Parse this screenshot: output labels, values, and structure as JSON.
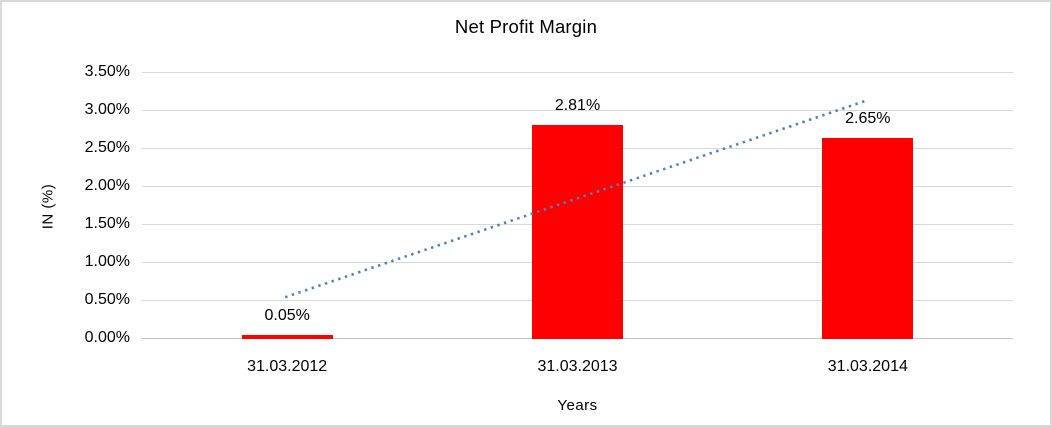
{
  "window": {
    "background_color": "#FFFFFF",
    "border_color": "#D8D8D8"
  },
  "chart_data": {
    "type": "bar",
    "title": "Net Profit Margin",
    "xlabel": "Years",
    "ylabel": "IN (%)",
    "categories": [
      "31.03.2012",
      "31.03.2013",
      "31.03.2014"
    ],
    "values": [
      0.05,
      2.81,
      2.65
    ],
    "data_labels": [
      "0.05%",
      "2.81%",
      "2.65%"
    ],
    "yticks": [
      "0.00%",
      "0.50%",
      "1.00%",
      "1.50%",
      "2.00%",
      "2.50%",
      "3.00%",
      "3.50%"
    ],
    "ylim": [
      0,
      3.5
    ],
    "grid": true,
    "legend": "none",
    "bar_color": "#FF0000",
    "gridline_color": "#D9D9D9",
    "axis_line_color": "#C6C6C6",
    "trendline": {
      "type": "linear",
      "style": "dotted",
      "color": "#4E81BD",
      "start_value": 0.55,
      "end_value": 3.13
    }
  }
}
